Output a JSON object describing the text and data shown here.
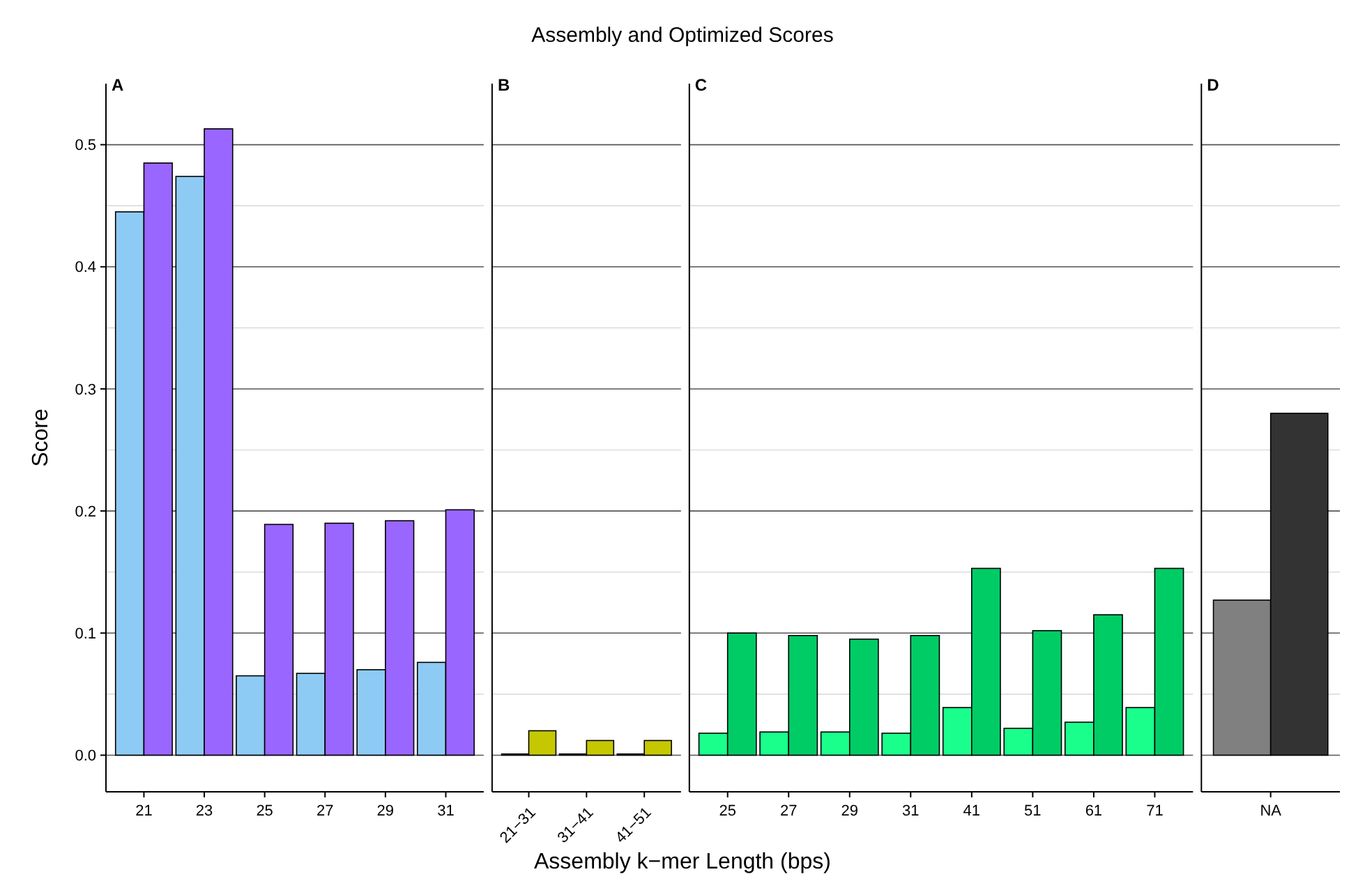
{
  "chart_data": [
    {
      "type": "bar",
      "title": "A",
      "annotations": [
        "Assembly and Optimized Scores"
      ],
      "ylabel": "Score",
      "categories": [
        "21",
        "23",
        "25",
        "27",
        "29",
        "31"
      ],
      "series": [
        {
          "color": "#8ecbf4",
          "values": [
            0.445,
            0.474,
            0.065,
            0.067,
            0.07,
            0.076
          ]
        },
        {
          "color": "#9966ff",
          "values": [
            0.485,
            0.513,
            0.189,
            0.19,
            0.192,
            0.201
          ]
        }
      ],
      "ylim": [
        -0.03,
        0.55
      ],
      "yticks": [
        {
          "value": 0,
          "label": "0.0"
        },
        {
          "value": 0.05,
          "label": null
        },
        0.1,
        {
          "value": 0.15,
          "label": null
        },
        0.2,
        {
          "value": 0.25,
          "label": null
        },
        0.3,
        {
          "value": 0.35,
          "label": null
        },
        0.4,
        {
          "value": 0.45,
          "label": null
        },
        0.5
      ],
      "grid": "y"
    },
    {
      "type": "bar",
      "title": "B",
      "categories": [
        "21−31",
        "31−41",
        "41−51"
      ],
      "series": [
        {
          "color": "#6b6b00",
          "values": [
            0.001,
            0.001,
            0.001
          ]
        },
        {
          "color": "#c5c800",
          "values": [
            0.02,
            0.012,
            0.012
          ]
        }
      ],
      "ylim": [
        -0.03,
        0.55
      ],
      "yticks": [
        0,
        {
          "value": 0.05,
          "label": null
        },
        0.1,
        {
          "value": 0.15,
          "label": null
        },
        0.2,
        {
          "value": 0.25,
          "label": null
        },
        0.3,
        {
          "value": 0.35,
          "label": null
        },
        0.4,
        {
          "value": 0.45,
          "label": null
        },
        0.5
      ],
      "grid": "y",
      "tick_labels": "x"
    },
    {
      "type": "bar",
      "title": "C",
      "xlabel": "Assembly k−mer Length (bps)",
      "categories": [
        "25",
        "27",
        "29",
        "31",
        "41",
        "51",
        "61",
        "71"
      ],
      "series": [
        {
          "color": "#1aff8c",
          "values": [
            0.018,
            0.019,
            0.019,
            0.018,
            0.039,
            0.022,
            0.027,
            0.039
          ]
        },
        {
          "color": "#00cc66",
          "values": [
            0.1,
            0.098,
            0.095,
            0.098,
            0.153,
            0.102,
            0.115,
            0.153
          ]
        }
      ],
      "ylim": [
        -0.03,
        0.55
      ],
      "yticks": [
        0,
        {
          "value": 0.05,
          "label": null
        },
        0.1,
        {
          "value": 0.15,
          "label": null
        },
        0.2,
        {
          "value": 0.25,
          "label": null
        },
        0.3,
        {
          "value": 0.35,
          "label": null
        },
        0.4,
        {
          "value": 0.45,
          "label": null
        },
        0.5
      ],
      "grid": "y",
      "tick_labels": "x"
    },
    {
      "type": "bar",
      "title": "D",
      "categories": [
        "NA"
      ],
      "series": [
        {
          "color": "#808080",
          "values": [
            0.127
          ]
        },
        {
          "color": "#333333",
          "values": [
            0.28
          ]
        }
      ],
      "ylim": [
        -0.03,
        0.55
      ],
      "yticks": [
        0,
        {
          "value": 0.05,
          "label": null
        },
        0.1,
        {
          "value": 0.15,
          "label": null
        },
        0.2,
        {
          "value": 0.25,
          "label": null
        },
        0.3,
        {
          "value": 0.35,
          "label": null
        },
        0.4,
        {
          "value": 0.45,
          "label": null
        },
        0.5
      ],
      "grid": "y",
      "tick_labels": "x"
    }
  ]
}
